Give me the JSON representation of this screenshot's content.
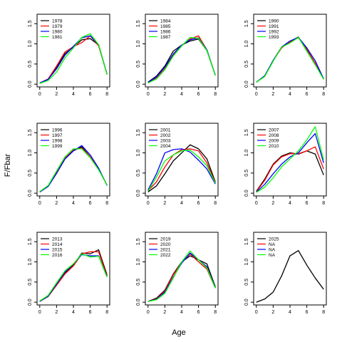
{
  "figure": {
    "xlabel": "Age",
    "ylabel": "F/Fbar"
  },
  "colors": [
    "#000000",
    "#ff0000",
    "#0000ff",
    "#00ff00"
  ],
  "chart_data": [
    {
      "type": "line",
      "x": [
        0,
        1,
        2,
        3,
        4,
        5,
        6,
        7,
        8
      ],
      "ylim": [
        0,
        1.7
      ],
      "xlim": [
        0,
        8
      ],
      "yticks": [
        0.0,
        0.5,
        1.0,
        1.5
      ],
      "xticks": [
        0,
        2,
        4,
        6,
        8
      ],
      "legend_position": "top-left",
      "series": [
        {
          "name": "1978",
          "values": [
            0.03,
            0.12,
            0.42,
            0.76,
            0.92,
            1.1,
            1.13,
            0.97,
            0.24
          ]
        },
        {
          "name": "1979",
          "values": [
            0.03,
            0.13,
            0.45,
            0.8,
            0.93,
            1.03,
            1.2,
            0.95,
            0.25
          ]
        },
        {
          "name": "1980",
          "values": [
            0.03,
            0.12,
            0.38,
            0.72,
            0.94,
            1.15,
            1.2,
            0.98,
            0.25
          ]
        },
        {
          "name": "1981",
          "values": [
            0.02,
            0.09,
            0.3,
            0.65,
            0.9,
            1.16,
            1.25,
            0.98,
            0.24
          ]
        }
      ]
    },
    {
      "type": "line",
      "x": [
        0,
        1,
        2,
        3,
        4,
        5,
        6,
        7,
        8
      ],
      "ylim": [
        0,
        1.7
      ],
      "xlim": [
        0,
        8
      ],
      "yticks": [
        0.0,
        0.5,
        1.0,
        1.5
      ],
      "xticks": [
        0,
        2,
        4,
        6,
        8
      ],
      "legend_position": "top-left",
      "series": [
        {
          "name": "1984",
          "values": [
            0.05,
            0.2,
            0.45,
            0.82,
            0.97,
            1.07,
            1.12,
            0.83,
            0.22
          ]
        },
        {
          "name": "1985",
          "values": [
            0.04,
            0.15,
            0.38,
            0.72,
            0.95,
            1.12,
            1.2,
            0.85,
            0.22
          ]
        },
        {
          "name": "1986",
          "values": [
            0.04,
            0.18,
            0.42,
            0.75,
            0.97,
            1.1,
            1.15,
            0.85,
            0.22
          ]
        },
        {
          "name": "1987",
          "values": [
            0.03,
            0.13,
            0.36,
            0.7,
            0.95,
            1.16,
            1.14,
            0.83,
            0.22
          ]
        }
      ]
    },
    {
      "type": "line",
      "x": [
        0,
        1,
        2,
        3,
        4,
        5,
        6,
        7,
        8
      ],
      "ylim": [
        0,
        1.7
      ],
      "xlim": [
        0,
        8
      ],
      "yticks": [
        0.0,
        0.5,
        1.0,
        1.5
      ],
      "xticks": [
        0,
        2,
        4,
        6,
        8
      ],
      "legend_position": "top-left",
      "series": [
        {
          "name": "1990",
          "values": [
            0.05,
            0.2,
            0.58,
            0.92,
            1.06,
            1.17,
            0.85,
            0.5,
            0.13
          ]
        },
        {
          "name": "1991",
          "values": [
            0.05,
            0.2,
            0.58,
            0.9,
            1.05,
            1.15,
            0.87,
            0.52,
            0.12
          ]
        },
        {
          "name": "1992",
          "values": [
            0.05,
            0.21,
            0.59,
            0.92,
            1.07,
            1.16,
            0.9,
            0.58,
            0.13
          ]
        },
        {
          "name": "1993",
          "values": [
            0.05,
            0.19,
            0.57,
            0.92,
            1.02,
            1.16,
            0.82,
            0.48,
            0.12
          ]
        }
      ]
    },
    {
      "type": "line",
      "x": [
        0,
        1,
        2,
        3,
        4,
        5,
        6,
        7,
        8
      ],
      "ylim": [
        0,
        1.7
      ],
      "xlim": [
        0,
        8
      ],
      "yticks": [
        0.0,
        0.5,
        1.0,
        1.5
      ],
      "xticks": [
        0,
        2,
        4,
        6,
        8
      ],
      "legend_position": "top-left",
      "series": [
        {
          "name": "1996",
          "values": [
            0.03,
            0.17,
            0.5,
            0.85,
            1.05,
            1.15,
            0.9,
            0.6,
            0.2
          ]
        },
        {
          "name": "1997",
          "values": [
            0.03,
            0.18,
            0.52,
            0.87,
            1.08,
            1.12,
            0.9,
            0.6,
            0.2
          ]
        },
        {
          "name": "1998",
          "values": [
            0.03,
            0.17,
            0.49,
            0.85,
            1.05,
            1.18,
            0.95,
            0.62,
            0.19
          ]
        },
        {
          "name": "1999",
          "values": [
            0.04,
            0.19,
            0.55,
            0.9,
            1.1,
            1.1,
            0.88,
            0.58,
            0.2
          ]
        }
      ]
    },
    {
      "type": "line",
      "x": [
        0,
        1,
        2,
        3,
        4,
        5,
        6,
        7,
        8
      ],
      "ylim": [
        0,
        1.7
      ],
      "xlim": [
        0,
        8
      ],
      "yticks": [
        0.0,
        0.5,
        1.0,
        1.5
      ],
      "xticks": [
        0,
        2,
        4,
        6,
        8
      ],
      "legend_position": "top-left",
      "series": [
        {
          "name": "2001",
          "values": [
            0.03,
            0.18,
            0.48,
            0.8,
            1.0,
            1.2,
            1.1,
            0.85,
            0.28
          ]
        },
        {
          "name": "2002",
          "values": [
            0.06,
            0.28,
            0.65,
            0.95,
            1.08,
            1.1,
            1.05,
            0.75,
            0.26
          ]
        },
        {
          "name": "2003",
          "values": [
            0.08,
            0.48,
            1.0,
            1.08,
            1.1,
            1.02,
            0.82,
            0.6,
            0.23
          ]
        },
        {
          "name": "2004",
          "values": [
            0.05,
            0.4,
            0.8,
            0.95,
            1.05,
            1.07,
            0.9,
            0.68,
            0.25
          ]
        }
      ]
    },
    {
      "type": "line",
      "x": [
        0,
        1,
        2,
        3,
        4,
        5,
        6,
        7,
        8
      ],
      "ylim": [
        0,
        1.7
      ],
      "xlim": [
        0,
        8
      ],
      "yticks": [
        0.0,
        0.5,
        1.0,
        1.5
      ],
      "xticks": [
        0,
        2,
        4,
        6,
        8
      ],
      "legend_position": "top-left",
      "series": [
        {
          "name": "2007",
          "values": [
            0.05,
            0.35,
            0.72,
            0.92,
            1.0,
            0.97,
            1.05,
            0.97,
            0.45
          ]
        },
        {
          "name": "2008",
          "values": [
            0.04,
            0.32,
            0.7,
            0.9,
            0.98,
            0.98,
            1.05,
            1.15,
            0.6
          ]
        },
        {
          "name": "2009",
          "values": [
            0.03,
            0.22,
            0.48,
            0.72,
            0.9,
            1.0,
            1.25,
            1.48,
            0.75
          ]
        },
        {
          "name": "2010",
          "values": [
            0.02,
            0.15,
            0.38,
            0.65,
            0.85,
            1.05,
            1.32,
            1.65,
            0.82
          ]
        }
      ]
    },
    {
      "type": "line",
      "x": [
        0,
        1,
        2,
        3,
        4,
        5,
        6,
        7,
        8
      ],
      "ylim": [
        0,
        1.7
      ],
      "xlim": [
        0,
        8
      ],
      "yticks": [
        0.0,
        0.5,
        1.0,
        1.5
      ],
      "xticks": [
        0,
        2,
        4,
        6,
        8
      ],
      "legend_position": "top-left",
      "series": [
        {
          "name": "2013",
          "values": [
            0.02,
            0.15,
            0.45,
            0.72,
            0.92,
            1.22,
            1.2,
            1.3,
            0.68
          ]
        },
        {
          "name": "2014",
          "values": [
            0.02,
            0.14,
            0.42,
            0.7,
            0.9,
            1.2,
            1.25,
            1.25,
            0.65
          ]
        },
        {
          "name": "2015",
          "values": [
            0.02,
            0.15,
            0.45,
            0.75,
            0.95,
            1.18,
            1.15,
            1.15,
            0.63
          ]
        },
        {
          "name": "2016",
          "values": [
            0.03,
            0.17,
            0.48,
            0.78,
            0.95,
            1.2,
            1.12,
            1.14,
            0.62
          ]
        }
      ]
    },
    {
      "type": "line",
      "x": [
        0,
        1,
        2,
        3,
        4,
        5,
        6,
        7,
        8
      ],
      "ylim": [
        0,
        1.7
      ],
      "xlim": [
        0,
        8
      ],
      "yticks": [
        0.0,
        0.5,
        1.0,
        1.5
      ],
      "xticks": [
        0,
        2,
        4,
        6,
        8
      ],
      "legend_position": "top-left",
      "series": [
        {
          "name": "2019",
          "values": [
            0.02,
            0.1,
            0.3,
            0.7,
            1.0,
            1.15,
            1.05,
            0.95,
            0.38
          ]
        },
        {
          "name": "2020",
          "values": [
            0.02,
            0.08,
            0.28,
            0.68,
            0.98,
            1.2,
            1.0,
            0.82,
            0.35
          ]
        },
        {
          "name": "2021",
          "values": [
            0.02,
            0.07,
            0.25,
            0.62,
            0.97,
            1.22,
            1.05,
            0.88,
            0.36
          ]
        },
        {
          "name": "2022",
          "values": [
            0.02,
            0.06,
            0.22,
            0.6,
            1.0,
            1.27,
            1.05,
            0.85,
            0.35
          ]
        }
      ]
    },
    {
      "type": "line",
      "x": [
        0,
        1,
        2,
        3,
        4,
        5,
        6,
        7,
        8
      ],
      "ylim": [
        0,
        1.7
      ],
      "xlim": [
        0,
        8
      ],
      "yticks": [
        0.0,
        0.5,
        1.0,
        1.5
      ],
      "xticks": [
        0,
        2,
        4,
        6,
        8
      ],
      "legend_position": "top-left",
      "series": [
        {
          "name": "2025",
          "values": [
            0.0,
            0.08,
            0.25,
            0.65,
            1.15,
            1.28,
            0.92,
            0.6,
            0.32
          ]
        }
      ],
      "extra_legend": [
        "NA",
        "NA",
        "NA"
      ]
    }
  ]
}
